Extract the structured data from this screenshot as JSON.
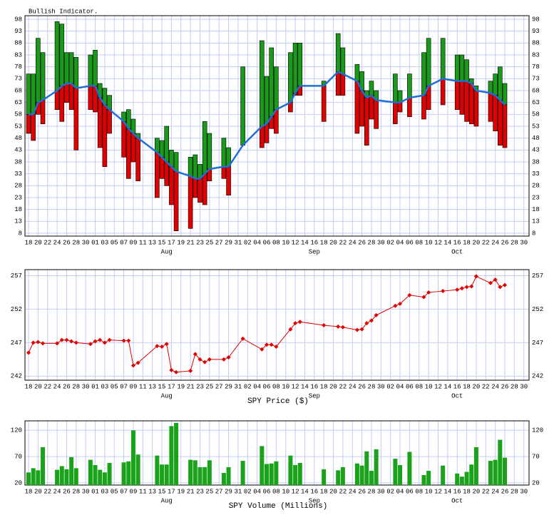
{
  "chart_data": [
    {
      "type": "range-bar",
      "title": "Bullish Indicator.",
      "categories": [
        "18",
        null,
        "20",
        null,
        "22",
        null,
        "24",
        null,
        "26",
        null,
        "28",
        null,
        "30",
        null,
        "01",
        null,
        "03",
        null,
        "05",
        null,
        "07",
        null,
        "09",
        null,
        "11",
        null,
        "13",
        null,
        "15",
        null,
        "17",
        null,
        "19",
        null,
        "21",
        null,
        "23",
        null,
        "25",
        null,
        "27",
        null,
        "29",
        null,
        "31",
        null,
        "02",
        null,
        "04",
        null,
        "06",
        null,
        "08",
        null,
        "10",
        null,
        "12",
        null,
        "14",
        null,
        "16",
        null,
        "18",
        null,
        "20",
        null,
        "22",
        null,
        "24",
        null,
        "26",
        null,
        "28",
        null,
        "30",
        null,
        "02",
        null,
        "04",
        null,
        "06",
        null,
        "08",
        null,
        "10",
        null,
        "12",
        null,
        "14",
        null,
        "16",
        null,
        "18",
        null,
        "20",
        null,
        "22",
        null,
        "24",
        null,
        "26",
        null,
        "28",
        null,
        "30"
      ],
      "months": [
        null,
        null,
        null,
        null,
        null,
        null,
        null,
        null,
        null,
        null,
        null,
        null,
        null,
        null,
        null,
        null,
        null,
        null,
        null,
        null,
        null,
        null,
        null,
        null,
        null,
        null,
        null,
        null,
        null,
        "Aug",
        null,
        null,
        null,
        null,
        null,
        null,
        null,
        null,
        null,
        null,
        null,
        null,
        null,
        null,
        null,
        null,
        null,
        null,
        null,
        null,
        null,
        null,
        null,
        null,
        null,
        null,
        null,
        null,
        null,
        null,
        "Sep",
        null,
        null,
        null,
        null,
        null,
        null,
        null,
        null,
        null,
        null,
        null,
        null,
        null,
        null,
        null,
        null,
        null,
        null,
        null,
        null,
        null,
        null,
        null,
        null,
        null,
        null,
        null,
        null,
        null,
        "Oct",
        null,
        null,
        null,
        null,
        null,
        null,
        null,
        null,
        null,
        null,
        null,
        null,
        null,
        null
      ],
      "values": [
        58,
        58,
        63,
        64,
        null,
        null,
        68,
        70,
        71,
        71,
        69,
        null,
        null,
        70,
        70,
        65,
        62,
        60,
        null,
        null,
        55,
        52,
        50,
        48,
        null,
        null,
        null,
        42,
        40,
        38,
        36,
        34,
        null,
        null,
        32,
        31,
        31,
        33,
        35,
        null,
        null,
        36,
        36,
        null,
        null,
        45,
        null,
        null,
        null,
        53,
        54,
        57,
        60,
        null,
        null,
        63,
        67,
        70,
        null,
        null,
        null,
        null,
        70,
        null,
        null,
        76,
        75,
        null,
        null,
        72,
        68,
        65,
        66,
        64,
        null,
        null,
        null,
        63,
        63,
        null,
        65,
        null,
        null,
        66,
        70,
        null,
        null,
        73,
        null,
        null,
        72,
        72,
        72,
        71,
        68,
        null,
        null,
        67,
        66,
        64,
        62,
        null,
        null,
        null,
        null
      ],
      "upper": [
        75,
        75,
        90,
        84,
        null,
        null,
        97,
        96,
        84,
        84,
        82,
        null,
        null,
        83,
        85,
        71,
        69,
        66,
        null,
        null,
        59,
        60,
        56,
        50,
        null,
        null,
        null,
        48,
        47,
        53,
        43,
        42,
        null,
        null,
        40,
        41,
        37,
        55,
        50,
        null,
        null,
        48,
        44,
        null,
        null,
        78,
        null,
        null,
        null,
        89,
        74,
        86,
        78,
        null,
        null,
        84,
        88,
        88,
        null,
        null,
        null,
        null,
        72,
        null,
        null,
        92,
        86,
        null,
        null,
        79,
        76,
        68,
        72,
        68,
        null,
        null,
        null,
        75,
        68,
        null,
        75,
        null,
        null,
        84,
        90,
        null,
        null,
        90,
        null,
        null,
        83,
        83,
        81,
        73,
        70,
        null,
        null,
        72,
        75,
        78,
        71,
        null,
        null,
        null,
        null
      ],
      "lower": [
        50,
        47,
        58,
        54,
        null,
        null,
        60,
        55,
        63,
        60,
        43,
        null,
        null,
        60,
        59,
        44,
        36,
        50,
        null,
        null,
        40,
        31,
        38,
        30,
        null,
        null,
        null,
        23,
        31,
        28,
        20,
        9,
        null,
        null,
        10,
        23,
        21,
        20,
        30,
        null,
        null,
        31,
        24,
        null,
        null,
        45,
        null,
        null,
        null,
        44,
        46,
        52,
        50,
        null,
        null,
        59,
        66,
        66,
        null,
        null,
        null,
        null,
        55,
        null,
        null,
        66,
        66,
        null,
        null,
        50,
        53,
        45,
        56,
        52,
        null,
        null,
        null,
        54,
        59,
        null,
        57,
        null,
        null,
        56,
        60,
        null,
        null,
        62,
        null,
        null,
        60,
        58,
        55,
        54,
        53,
        null,
        null,
        55,
        51,
        45,
        44,
        null,
        null,
        null,
        null
      ],
      "line_color": "#1f6fd6",
      "up_color": "#1a9a1a",
      "down_color": "#e00000",
      "ylim": [
        6.8,
        99.5
      ],
      "yticks": [
        8,
        13,
        18,
        23,
        28,
        33,
        38,
        43,
        48,
        53,
        58,
        63,
        68,
        73,
        78,
        83,
        88,
        93,
        98
      ],
      "grid": true
    },
    {
      "type": "line",
      "title": "SPY Price ($)",
      "values": [
        245.5,
        247.0,
        247.1,
        246.9,
        null,
        null,
        246.9,
        247.4,
        247.4,
        247.2,
        247.0,
        null,
        null,
        246.8,
        247.2,
        247.4,
        247.0,
        247.4,
        null,
        null,
        247.3,
        247.3,
        243.6,
        244.0,
        null,
        null,
        null,
        246.5,
        246.4,
        246.8,
        242.9,
        242.6,
        null,
        null,
        242.8,
        245.3,
        244.5,
        244.1,
        244.5,
        null,
        null,
        244.5,
        244.8,
        null,
        null,
        247.6,
        null,
        null,
        null,
        246.0,
        246.7,
        246.7,
        246.4,
        null,
        null,
        249.0,
        249.9,
        250.1,
        null,
        null,
        null,
        null,
        249.6,
        null,
        null,
        249.4,
        249.3,
        null,
        null,
        248.9,
        249.0,
        249.9,
        250.3,
        251.1,
        null,
        null,
        null,
        252.5,
        252.8,
        null,
        254.1,
        null,
        null,
        253.8,
        254.5,
        null,
        null,
        254.7,
        null,
        null,
        254.9,
        255.1,
        255.3,
        255.4,
        256.9,
        null,
        null,
        255.9,
        256.4,
        255.3,
        255.6,
        null,
        null,
        null,
        null
      ],
      "color": "#e00000",
      "ylim": [
        241.4,
        257.9
      ],
      "yticks": [
        242,
        247,
        252,
        257
      ],
      "grid": true
    },
    {
      "type": "bar",
      "title": "SPY Volume (Millions)",
      "values": [
        40,
        48,
        44,
        88,
        null,
        null,
        45,
        52,
        46,
        69,
        48,
        null,
        null,
        64,
        54,
        45,
        40,
        58,
        null,
        null,
        59,
        61,
        120,
        74,
        null,
        null,
        null,
        72,
        55,
        55,
        128,
        134,
        null,
        null,
        64,
        63,
        50,
        50,
        63,
        null,
        null,
        39,
        50,
        null,
        null,
        62,
        null,
        null,
        null,
        90,
        56,
        57,
        61,
        null,
        null,
        72,
        54,
        58,
        null,
        null,
        null,
        null,
        46,
        null,
        null,
        44,
        50,
        null,
        null,
        57,
        53,
        80,
        43,
        84,
        null,
        null,
        null,
        66,
        54,
        null,
        79,
        null,
        null,
        35,
        43,
        null,
        null,
        53,
        null,
        null,
        38,
        32,
        41,
        55,
        88,
        null,
        null,
        62,
        64,
        102,
        68,
        null,
        null,
        null,
        null
      ],
      "color": "#1aa31a",
      "ylim": [
        16,
        138
      ],
      "yticks": [
        20,
        70,
        120
      ],
      "grid": true
    }
  ]
}
